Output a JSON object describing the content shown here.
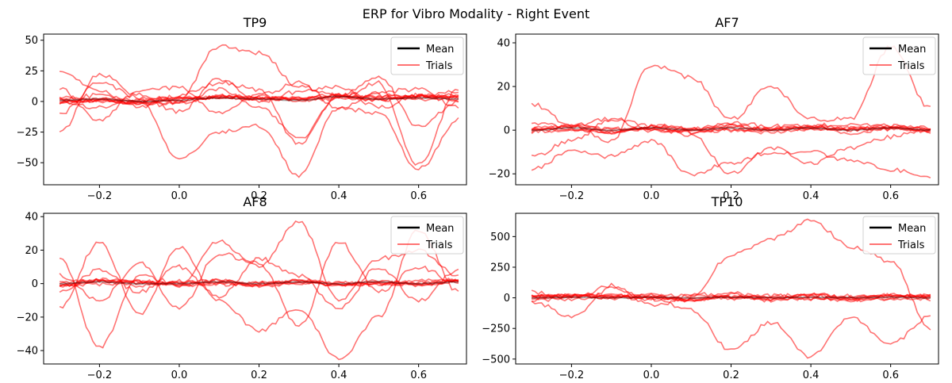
{
  "figure": {
    "title": "ERP for Vibro Modality - Right Event"
  },
  "colors": {
    "mean": "#000000",
    "trials": "#ff0000",
    "axes": "#000000",
    "background": "#ffffff"
  },
  "legend": {
    "mean_label": "Mean",
    "trials_label": "Trials",
    "placement": "top-right"
  },
  "chart_data": [
    {
      "type": "line",
      "title": "TP9",
      "xlabel": "",
      "ylabel": "",
      "xlim": [
        -0.34,
        0.72
      ],
      "ylim": [
        -68,
        55
      ],
      "xticks": [
        -0.2,
        0.0,
        0.2,
        0.4,
        0.6
      ],
      "xtick_labels": [
        "−0.2",
        "0.0",
        "0.2",
        "0.4",
        "0.6"
      ],
      "yticks": [
        -50,
        -25,
        0,
        25,
        50
      ],
      "ytick_labels": [
        "−50",
        "−25",
        "0",
        "25",
        "50"
      ],
      "grid": false,
      "legend": [
        "Mean",
        "Trials"
      ],
      "series": [
        {
          "name": "Mean",
          "x": [
            -0.3,
            -0.2,
            -0.1,
            0.0,
            0.1,
            0.2,
            0.3,
            0.4,
            0.5,
            0.6,
            0.7
          ],
          "y": [
            1,
            2,
            0,
            1,
            3,
            2,
            1,
            4,
            2,
            3,
            2
          ]
        },
        {
          "name": "Trials",
          "trials": [
            {
              "x": [
                -0.3,
                -0.2,
                -0.1,
                0.0,
                0.1,
                0.2,
                0.3,
                0.4,
                0.5,
                0.6,
                0.7
              ],
              "y": [
                2,
                5,
                0,
                3,
                45,
                40,
                12,
                6,
                5,
                3,
                5
              ]
            },
            {
              "x": [
                -0.3,
                -0.2,
                -0.1,
                0.0,
                0.1,
                0.2,
                0.3,
                0.4,
                0.5,
                0.6,
                0.7
              ],
              "y": [
                0,
                -5,
                0,
                -48,
                -25,
                -20,
                -60,
                -5,
                -10,
                -55,
                -15
              ]
            },
            {
              "x": [
                -0.3,
                -0.2,
                -0.1,
                0.0,
                0.1,
                0.2,
                0.3,
                0.4,
                0.5,
                0.6,
                0.7
              ],
              "y": [
                -25,
                22,
                5,
                0,
                10,
                -5,
                -30,
                3,
                15,
                -52,
                10
              ]
            },
            {
              "x": [
                -0.3,
                -0.2,
                -0.1,
                0.0,
                0.1,
                0.2,
                0.3,
                0.4,
                0.5,
                0.6,
                0.7
              ],
              "y": [
                25,
                8,
                -5,
                5,
                15,
                10,
                -35,
                5,
                20,
                -20,
                0
              ]
            },
            {
              "x": [
                -0.3,
                -0.2,
                -0.1,
                0.0,
                0.1,
                0.2,
                0.3,
                0.4,
                0.5,
                0.6,
                0.7
              ],
              "y": [
                10,
                -15,
                8,
                12,
                -10,
                5,
                15,
                -5,
                8,
                10,
                -5
              ]
            },
            {
              "x": [
                -0.3,
                -0.2,
                -0.1,
                0.0,
                0.1,
                0.2,
                0.3,
                0.4,
                0.5,
                0.6,
                0.7
              ],
              "y": [
                -10,
                15,
                3,
                -8,
                18,
                0,
                8,
                12,
                -5,
                5,
                8
              ]
            }
          ]
        }
      ]
    },
    {
      "type": "line",
      "title": "AF7",
      "xlabel": "",
      "ylabel": "",
      "xlim": [
        -0.34,
        0.72
      ],
      "ylim": [
        -25,
        44
      ],
      "xticks": [
        -0.2,
        0.0,
        0.2,
        0.4,
        0.6
      ],
      "xtick_labels": [
        "−0.2",
        "0.0",
        "0.2",
        "0.4",
        "0.6"
      ],
      "yticks": [
        -20,
        0,
        20,
        40
      ],
      "ytick_labels": [
        "−20",
        "0",
        "20",
        "40"
      ],
      "grid": false,
      "legend": [
        "Mean",
        "Trials"
      ],
      "series": [
        {
          "name": "Mean",
          "x": [
            -0.3,
            -0.2,
            -0.1,
            0.0,
            0.1,
            0.2,
            0.3,
            0.4,
            0.5,
            0.6,
            0.7
          ],
          "y": [
            0,
            1,
            0,
            1,
            0,
            1,
            0,
            1,
            0,
            1,
            0
          ]
        },
        {
          "name": "Trials",
          "trials": [
            {
              "x": [
                -0.3,
                -0.2,
                -0.1,
                0.0,
                0.1,
                0.2,
                0.3,
                0.4,
                0.5,
                0.6,
                0.7
              ],
              "y": [
                12,
                2,
                -5,
                30,
                24,
                5,
                20,
                5,
                5,
                38,
                10
              ]
            },
            {
              "x": [
                -0.3,
                -0.2,
                -0.1,
                0.0,
                0.1,
                0.2,
                0.3,
                0.4,
                0.5,
                0.6,
                0.7
              ],
              "y": [
                -18,
                -10,
                -12,
                -5,
                -20,
                -15,
                -10,
                -10,
                -14,
                -18,
                -22
              ]
            },
            {
              "x": [
                -0.3,
                -0.2,
                -0.1,
                0.0,
                0.1,
                0.2,
                0.3,
                0.4,
                0.5,
                0.6,
                0.7
              ],
              "y": [
                -12,
                -5,
                5,
                0,
                -2,
                -20,
                -8,
                -15,
                -8,
                -3,
                0
              ]
            },
            {
              "x": [
                -0.3,
                -0.2,
                -0.1,
                0.0,
                0.1,
                0.2,
                0.3,
                0.4,
                0.5,
                0.6,
                0.7
              ],
              "y": [
                3,
                2,
                5,
                2,
                1,
                3,
                2,
                2,
                3,
                2,
                1
              ]
            }
          ]
        }
      ]
    },
    {
      "type": "line",
      "title": "AF8",
      "xlabel": "",
      "ylabel": "",
      "xlim": [
        -0.34,
        0.72
      ],
      "ylim": [
        -48,
        42
      ],
      "xticks": [
        -0.2,
        0.0,
        0.2,
        0.4,
        0.6
      ],
      "xtick_labels": [
        "−0.2",
        "0.0",
        "0.2",
        "0.4",
        "0.6"
      ],
      "yticks": [
        -40,
        -20,
        0,
        20,
        40
      ],
      "ytick_labels": [
        "−40",
        "−20",
        "0",
        "20",
        "40"
      ],
      "grid": false,
      "legend": [
        "Mean",
        "Trials"
      ],
      "series": [
        {
          "name": "Mean",
          "x": [
            -0.3,
            -0.2,
            -0.1,
            0.0,
            0.1,
            0.2,
            0.3,
            0.4,
            0.5,
            0.6,
            0.7
          ],
          "y": [
            0,
            1,
            0,
            0,
            1,
            0,
            1,
            0,
            1,
            0,
            1
          ]
        },
        {
          "name": "Trials",
          "trials": [
            {
              "x": [
                -0.3,
                -0.2,
                -0.1,
                0.0,
                0.1,
                0.2,
                0.3,
                0.4,
                0.5,
                0.6,
                0.7
              ],
              "y": [
                15,
                -38,
                5,
                0,
                25,
                10,
                37,
                -10,
                15,
                20,
                5
              ]
            },
            {
              "x": [
                -0.3,
                -0.2,
                -0.1,
                0.0,
                0.1,
                0.2,
                0.3,
                0.4,
                0.5,
                0.6,
                0.7
              ],
              "y": [
                -15,
                25,
                -18,
                22,
                -10,
                -28,
                -15,
                -45,
                -20,
                32,
                -5
              ]
            },
            {
              "x": [
                -0.3,
                -0.2,
                -0.1,
                0.0,
                0.1,
                0.2,
                0.3,
                0.4,
                0.5,
                0.6,
                0.7
              ],
              "y": [
                5,
                -10,
                12,
                -15,
                18,
                12,
                -25,
                25,
                -5,
                10,
                0
              ]
            },
            {
              "x": [
                -0.3,
                -0.2,
                -0.1,
                0.0,
                0.1,
                0.2,
                0.3,
                0.4,
                0.5,
                0.6,
                0.7
              ],
              "y": [
                -5,
                8,
                -5,
                10,
                -8,
                15,
                5,
                -15,
                10,
                -10,
                8
              ]
            }
          ]
        }
      ]
    },
    {
      "type": "line",
      "title": "TP10",
      "xlabel": "",
      "ylabel": "",
      "xlim": [
        -0.34,
        0.72
      ],
      "ylim": [
        -540,
        690
      ],
      "xticks": [
        -0.2,
        0.0,
        0.2,
        0.4,
        0.6
      ],
      "xtick_labels": [
        "−0.2",
        "0.0",
        "0.2",
        "0.4",
        "0.6"
      ],
      "yticks": [
        -500,
        -250,
        0,
        250,
        500
      ],
      "ytick_labels": [
        "−500",
        "−250",
        "0",
        "250",
        "500"
      ],
      "grid": false,
      "legend": [
        "Mean",
        "Trials"
      ],
      "series": [
        {
          "name": "Mean",
          "x": [
            -0.3,
            -0.2,
            -0.1,
            0.0,
            0.1,
            0.2,
            0.3,
            0.4,
            0.5,
            0.6,
            0.7
          ],
          "y": [
            0,
            5,
            0,
            5,
            0,
            5,
            0,
            5,
            0,
            5,
            0
          ]
        },
        {
          "name": "Trials",
          "trials": [
            {
              "x": [
                -0.3,
                -0.2,
                -0.1,
                0.0,
                0.1,
                0.2,
                0.3,
                0.4,
                0.5,
                0.6,
                0.7
              ],
              "y": [
                50,
                -20,
                100,
                -60,
                0,
                350,
                480,
                630,
                420,
                300,
                -250
              ]
            },
            {
              "x": [
                -0.3,
                -0.2,
                -0.1,
                0.0,
                0.1,
                0.2,
                0.3,
                0.4,
                0.5,
                0.6,
                0.7
              ],
              "y": [
                -30,
                -150,
                80,
                0,
                -100,
                -430,
                -200,
                -480,
                -150,
                -380,
                -150
              ]
            },
            {
              "x": [
                -0.3,
                -0.2,
                -0.1,
                0.0,
                0.1,
                0.2,
                0.3,
                0.4,
                0.5,
                0.6,
                0.7
              ],
              "y": [
                0,
                20,
                10,
                -10,
                20,
                40,
                10,
                30,
                0,
                10,
                5
              ]
            }
          ]
        }
      ]
    }
  ]
}
